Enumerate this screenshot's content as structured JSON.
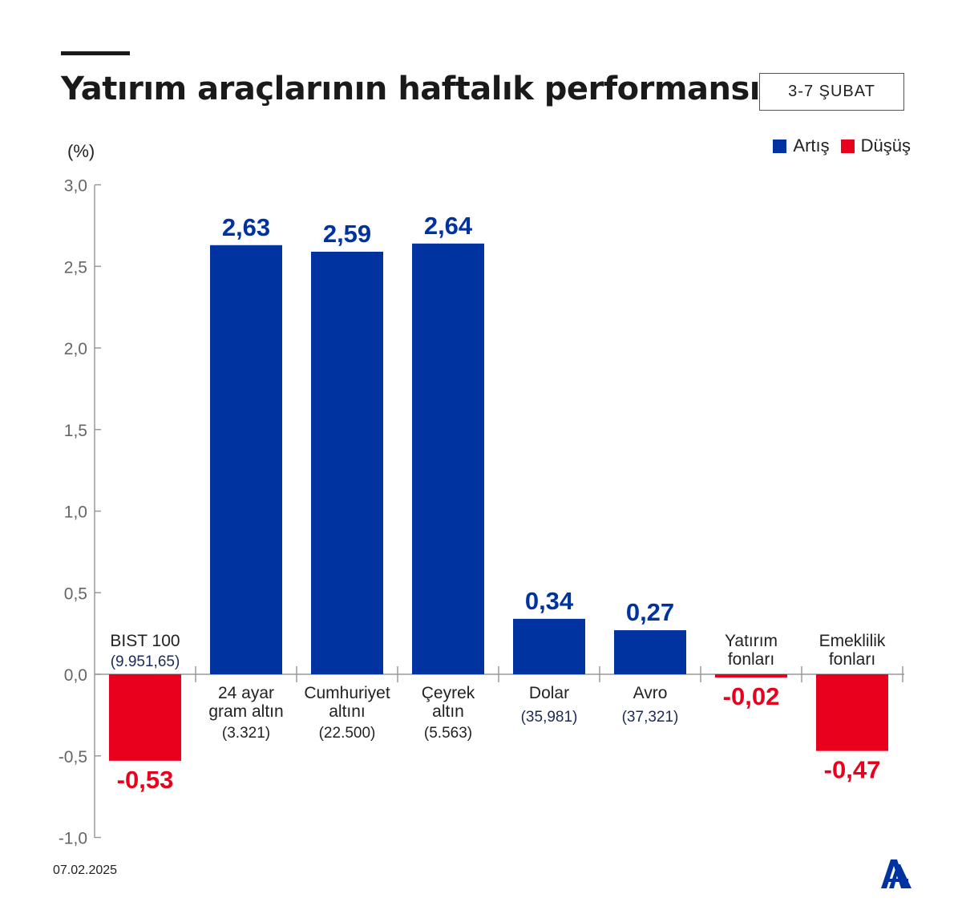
{
  "header": {
    "title": "Yatırım araçlarının haftalık performansı",
    "period": "3-7 ŞUBAT"
  },
  "legend": [
    {
      "label": "Artış",
      "color": "#0033a0"
    },
    {
      "label": "Düşüş",
      "color": "#e8001c"
    }
  ],
  "footer": {
    "date": "07.02.2025",
    "logo": "AA"
  },
  "chart_data": {
    "type": "bar",
    "ylabel": "(%)",
    "ylim": [
      -1.0,
      3.0
    ],
    "yticks": [
      "3,0",
      "2,5",
      "2,0",
      "1,5",
      "1,0",
      "0,5",
      "0,0",
      "-0,5",
      "-1,0"
    ],
    "ytick_values": [
      3.0,
      2.5,
      2.0,
      1.5,
      1.0,
      0.5,
      0.0,
      -0.5,
      -1.0
    ],
    "grid": false,
    "legend_position": "top-right",
    "categories": [
      {
        "name": [
          "BIST 100"
        ],
        "price": "(9.951,65)"
      },
      {
        "name": [
          "24 ayar",
          "gram altın"
        ],
        "price": "(3.321)"
      },
      {
        "name": [
          "Cumhuriyet",
          "altını"
        ],
        "price": "(22.500)"
      },
      {
        "name": [
          "Çeyrek",
          "altın"
        ],
        "price": "(5.563)"
      },
      {
        "name": [
          "Dolar"
        ],
        "price": "(35,981)"
      },
      {
        "name": [
          "Avro"
        ],
        "price": "(37,321)"
      },
      {
        "name": [
          "Yatırım",
          "fonları"
        ],
        "price": ""
      },
      {
        "name": [
          "Emeklilik",
          "fonları"
        ],
        "price": ""
      }
    ],
    "values": [
      -0.53,
      2.63,
      2.59,
      2.64,
      0.34,
      0.27,
      -0.02,
      -0.47
    ],
    "data_labels": [
      "-0,53",
      "2,63",
      "2,59",
      "2,64",
      "0,34",
      "0,27",
      "-0,02",
      "-0,47"
    ],
    "colors": {
      "positive": "#0033a0",
      "negative": "#e8001c"
    }
  }
}
